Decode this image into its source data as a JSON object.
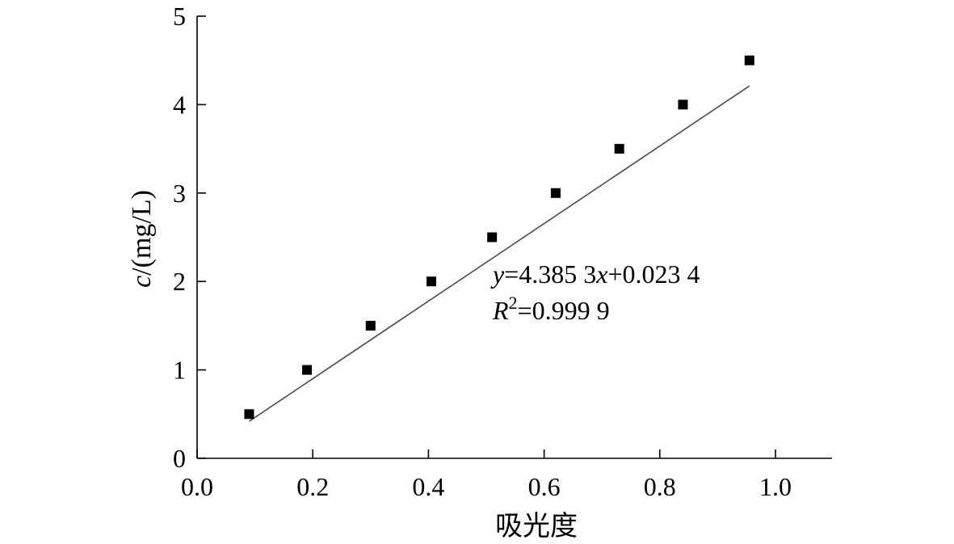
{
  "chart_data": {
    "type": "scatter",
    "title": "",
    "xlabel": "吸光度",
    "ylabel": {
      "italic": "c",
      "rest": "/(mg/L)"
    },
    "xlim": [
      0.0,
      1.1
    ],
    "ylim": [
      0,
      5
    ],
    "x_ticks": [
      0.0,
      0.2,
      0.4,
      0.6,
      0.8,
      1.0
    ],
    "x_tick_labels": [
      "0.0",
      "0.2",
      "0.4",
      "0.6",
      "0.8",
      "1.0"
    ],
    "y_ticks": [
      0,
      1,
      2,
      3,
      4,
      5
    ],
    "y_tick_labels": [
      "0",
      "1",
      "2",
      "3",
      "4",
      "5"
    ],
    "grid": false,
    "legend": "none",
    "series": [
      {
        "marker": "square",
        "x": [
          0.09,
          0.19,
          0.3,
          0.405,
          0.51,
          0.62,
          0.73,
          0.84,
          0.955
        ],
        "y": [
          0.5,
          1.0,
          1.5,
          2.0,
          2.5,
          3.0,
          3.5,
          4.0,
          4.5
        ]
      }
    ],
    "fit": {
      "slope": 4.3853,
      "intercept": 0.0234,
      "x_range": [
        0.09,
        0.955
      ],
      "color": "#4a4a4a"
    },
    "annotation": {
      "line1": {
        "y_var": "y",
        "eq1": "=4.385 3",
        "x_var": "x",
        "eq2": "+0.023 4"
      },
      "line2": {
        "r_var": "R",
        "sup": "2",
        "eq": "=0.999 9"
      }
    }
  }
}
